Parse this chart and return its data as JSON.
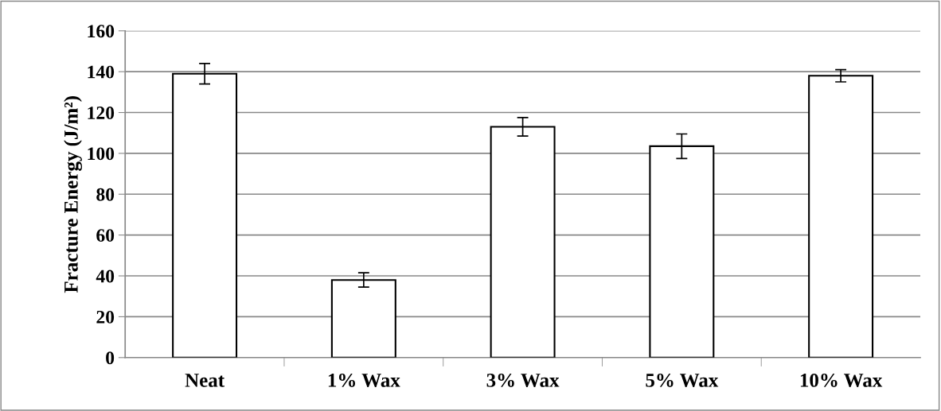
{
  "chart_data": {
    "type": "bar",
    "ylabel": "Fracture Energy (J/m²)",
    "categories": [
      "Neat",
      "1% Wax",
      "3% Wax",
      "5% Wax",
      "10% Wax"
    ],
    "values": [
      139,
      38,
      113,
      103.5,
      138
    ],
    "errors": [
      5,
      3.5,
      4.5,
      6,
      3
    ],
    "colors": [
      "#ffffff",
      "#ffffff",
      "#ffffff",
      "#ffffff",
      "#ffffff"
    ],
    "ylim": [
      0,
      160
    ],
    "yticks": [
      0,
      20,
      40,
      60,
      80,
      100,
      120,
      140,
      160
    ],
    "grid": "y",
    "legend": false
  }
}
